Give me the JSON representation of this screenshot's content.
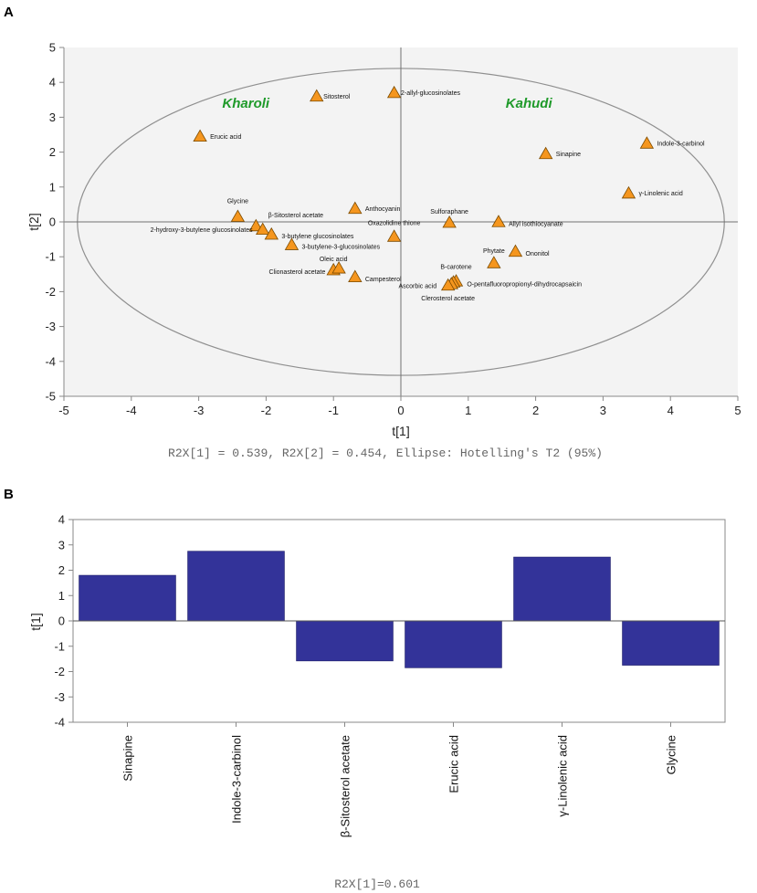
{
  "panel_a_letter": "A",
  "panel_b_letter": "B",
  "chart_data": [
    {
      "type": "scatter",
      "panel": "A",
      "xlabel": "t[1]",
      "ylabel": "t[2]",
      "xlim": [
        -5,
        5
      ],
      "ylim": [
        -5,
        5
      ],
      "xticks": [
        -5,
        -4,
        -3,
        -2,
        -1,
        0,
        1,
        2,
        3,
        4,
        5
      ],
      "yticks": [
        -5,
        -4,
        -3,
        -2,
        -1,
        0,
        1,
        2,
        3,
        4,
        5
      ],
      "footnote": "R2X[1] = 0.539, R2X[2] = 0.454, Ellipse: Hotelling's T2 (95%)",
      "group_labels": [
        {
          "text": "Kharoli",
          "x": -2.3,
          "y": 3.4
        },
        {
          "text": "Kahudi",
          "x": 1.9,
          "y": 3.4
        }
      ],
      "ellipse": {
        "cx": 0,
        "cy": 0,
        "rx": 4.8,
        "ry": 4.4
      },
      "marker_color": "#f5961e",
      "points": [
        {
          "name": "Sitosterol",
          "x": -1.25,
          "y": 3.6,
          "lx": 0.1,
          "ly": 0.0,
          "anchor": "start"
        },
        {
          "name": "2-allyl-glucosinolates",
          "x": -0.1,
          "y": 3.7,
          "lx": 0.1,
          "ly": 0.0,
          "anchor": "start"
        },
        {
          "name": "Erucic acid",
          "x": -2.98,
          "y": 2.45,
          "lx": 0.15,
          "ly": 0.0,
          "anchor": "start"
        },
        {
          "name": "Indole-3-carbinol",
          "x": 3.65,
          "y": 2.25,
          "lx": 0.15,
          "ly": 0.0,
          "anchor": "start"
        },
        {
          "name": "Sinapine",
          "x": 2.15,
          "y": 1.95,
          "lx": 0.15,
          "ly": 0.0,
          "anchor": "start"
        },
        {
          "name": "γ-Linolenic acid",
          "x": 3.38,
          "y": 0.82,
          "lx": 0.15,
          "ly": 0.0,
          "anchor": "start"
        },
        {
          "name": "Glycine",
          "x": -2.42,
          "y": 0.15,
          "lx": 0.0,
          "ly": 0.45,
          "anchor": "middle"
        },
        {
          "name": "β-Sitosterol acetate",
          "x": -2.15,
          "y": -0.12,
          "lx": 0.18,
          "ly": 0.32,
          "anchor": "start"
        },
        {
          "name": "2-hydroxy-3-butylene glucosinolates",
          "x": -2.05,
          "y": -0.22,
          "lx": -0.15,
          "ly": 0.0,
          "anchor": "end"
        },
        {
          "name": "3-butylene glucosinolates",
          "x": -1.92,
          "y": -0.36,
          "lx": 0.15,
          "ly": -0.05,
          "anchor": "start"
        },
        {
          "name": "3-butylene-3-glucosinolates",
          "x": -1.62,
          "y": -0.66,
          "lx": 0.15,
          "ly": -0.05,
          "anchor": "start"
        },
        {
          "name": "Anthocyanin",
          "x": -0.68,
          "y": 0.38,
          "lx": 0.15,
          "ly": 0.0,
          "anchor": "start"
        },
        {
          "name": "Oxazolidine thione",
          "x": -0.1,
          "y": -0.42,
          "lx": 0.0,
          "ly": 0.4,
          "anchor": "middle"
        },
        {
          "name": "Sulforaphane",
          "x": 0.72,
          "y": -0.02,
          "lx": 0.0,
          "ly": 0.32,
          "anchor": "middle"
        },
        {
          "name": "Allyl isothiocyanate",
          "x": 1.45,
          "y": 0.0,
          "lx": 0.15,
          "ly": -0.05,
          "anchor": "start"
        },
        {
          "name": "Oleic acid",
          "x": -1.0,
          "y": -1.38,
          "lx": 0.0,
          "ly": 0.32,
          "anchor": "middle"
        },
        {
          "name": "Clionasterol acetate",
          "x": -0.92,
          "y": -1.33,
          "lx": -0.2,
          "ly": -0.1,
          "anchor": "end"
        },
        {
          "name": "Campesterol",
          "x": -0.68,
          "y": -1.58,
          "lx": 0.15,
          "ly": -0.05,
          "anchor": "start"
        },
        {
          "name": "Phytate",
          "x": 1.38,
          "y": -1.18,
          "lx": 0.0,
          "ly": 0.35,
          "anchor": "middle"
        },
        {
          "name": "Ononitol",
          "x": 1.7,
          "y": -0.85,
          "lx": 0.15,
          "ly": -0.05,
          "anchor": "start"
        },
        {
          "name": "B-carotene",
          "x": 0.82,
          "y": -1.7,
          "lx": 0.0,
          "ly": 0.42,
          "anchor": "middle"
        },
        {
          "name": "O-pentafluoropropionyl-dihydrocapsaicin",
          "x": 0.78,
          "y": -1.73,
          "lx": 0.2,
          "ly": -0.05,
          "anchor": "start"
        },
        {
          "name": "Ascorbic acid",
          "x": 0.75,
          "y": -1.78,
          "lx": -0.22,
          "ly": -0.05,
          "anchor": "end"
        },
        {
          "name": "Clerosterol acetate",
          "x": 0.7,
          "y": -1.82,
          "lx": 0.0,
          "ly": -0.37,
          "anchor": "middle"
        }
      ]
    },
    {
      "type": "bar",
      "panel": "B",
      "ylabel": "t[1]",
      "ylim": [
        -4,
        4
      ],
      "yticks": [
        -4,
        -3,
        -2,
        -1,
        0,
        1,
        2,
        3,
        4
      ],
      "categories": [
        "Sinapine",
        "Indole-3-carbinol",
        "β-Sitosterol acetate",
        "Erucic acid",
        "γ-Linolenic acid",
        "Glycine"
      ],
      "values": [
        1.8,
        2.75,
        -1.58,
        -1.85,
        2.52,
        -1.75
      ],
      "bar_color": "#333399",
      "footnote": "R2X[1]=0.601"
    }
  ]
}
